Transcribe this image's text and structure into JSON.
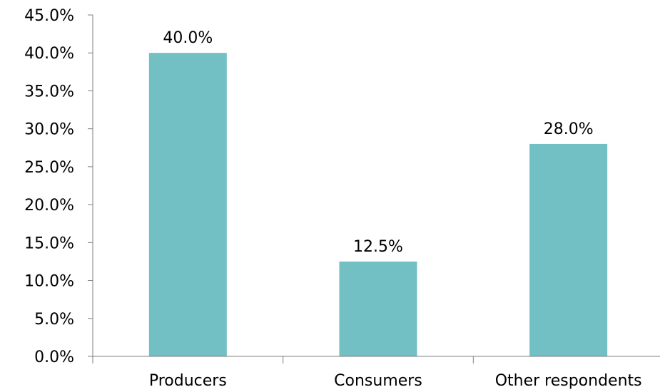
{
  "chart_data": {
    "type": "bar",
    "categories": [
      "Producers",
      "Consumers",
      "Other respondents"
    ],
    "values": [
      40.0,
      12.5,
      28.0
    ],
    "data_labels": [
      "40.0%",
      "12.5%",
      "28.0%"
    ],
    "title": "",
    "xlabel": "",
    "ylabel": "",
    "ylim": [
      0,
      45
    ],
    "y_ticks": [
      0,
      5,
      10,
      15,
      20,
      25,
      30,
      35,
      40,
      45
    ],
    "y_tick_labels": [
      "0.0%",
      "5.0%",
      "10.0%",
      "15.0%",
      "20.0%",
      "25.0%",
      "30.0%",
      "35.0%",
      "40.0%",
      "45.0%"
    ],
    "grid": false,
    "legend": "none",
    "bar_color": "#72BFC4",
    "axis_color": "#7F7F7F"
  }
}
